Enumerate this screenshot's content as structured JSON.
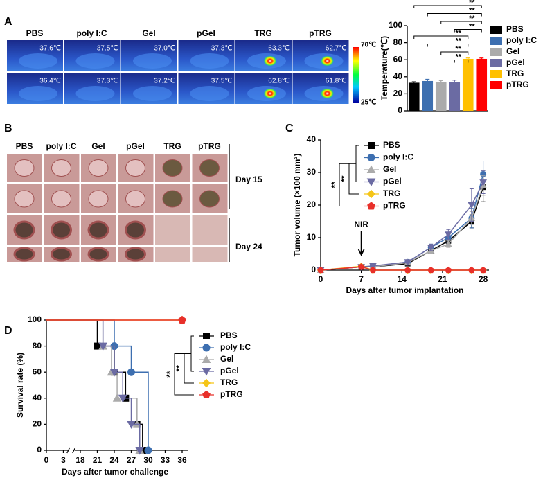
{
  "panel_labels": [
    "A",
    "B",
    "C",
    "D"
  ],
  "thermal": {
    "labels": [
      "PBS",
      "poly I:C",
      "Gel",
      "pGel",
      "TRG",
      "pTRG"
    ],
    "rows": [
      [
        "37.6℃",
        "37.5℃",
        "37.0℃",
        "37.3℃",
        "63.3℃",
        "62.7℃"
      ],
      [
        "36.4℃",
        "37.3℃",
        "37.2℃",
        "37.5℃",
        "62.8℃",
        "61.8℃"
      ]
    ],
    "scale": [
      "70℃",
      "25℃"
    ]
  },
  "photos": {
    "labels": [
      "PBS",
      "poly I:C",
      "Gel",
      "pGel",
      "TRG",
      "pTRG"
    ],
    "days": [
      "Day 15",
      "Day 24"
    ]
  },
  "chart_data": [
    {
      "type": "bar",
      "ylabel": "Temperature(℃)",
      "categories": [
        "PBS",
        "poly I:C",
        "Gel",
        "pGel",
        "TRG",
        "pTRG"
      ],
      "values": [
        33,
        35,
        34,
        34,
        61,
        61
      ],
      "errors": [
        1,
        2,
        1.5,
        2,
        1,
        1
      ],
      "colors": [
        "#000000",
        "#3d6fb0",
        "#ababab",
        "#6b6ba3",
        "#ffc000",
        "#ff0000"
      ],
      "ylim": [
        0,
        100
      ],
      "yticks": [
        0,
        20,
        40,
        60,
        80,
        100
      ],
      "legend": "right",
      "significance": [
        "**",
        "**",
        "**",
        "**",
        "**",
        "**",
        "**",
        "**"
      ]
    },
    {
      "type": "line",
      "xlabel": "Days after tumor implantation",
      "ylabel": "Tumor volume (×100 mm³)",
      "x": [
        0,
        7,
        9,
        15,
        19,
        22,
        26,
        28
      ],
      "xlim": [
        0,
        29
      ],
      "xticks": [
        0,
        7,
        14,
        21,
        28
      ],
      "ylim": [
        0,
        40
      ],
      "yticks": [
        0,
        10,
        20,
        30,
        40
      ],
      "annotation": "NIR",
      "significance": [
        "**",
        "**"
      ],
      "series": [
        {
          "name": "PBS",
          "color": "#000000",
          "marker": "square",
          "values": [
            0,
            1,
            1,
            2,
            6,
            9,
            15,
            25.5
          ],
          "errors": [
            0,
            0,
            0.3,
            0.3,
            0.8,
            1,
            2,
            4.5
          ]
        },
        {
          "name": "poly I:C",
          "color": "#3d6fb0",
          "marker": "circle",
          "values": [
            0,
            1,
            1.2,
            2.5,
            7,
            10,
            16,
            29.5
          ],
          "errors": [
            0,
            0,
            0.3,
            0.4,
            1,
            1.5,
            3,
            4
          ]
        },
        {
          "name": "Gel",
          "color": "#ababab",
          "marker": "triangle-up",
          "values": [
            0,
            1,
            1,
            2.3,
            6,
            8,
            16,
            26
          ],
          "errors": [
            0,
            0,
            0.2,
            0.3,
            0.8,
            1,
            2,
            3
          ]
        },
        {
          "name": "pGel",
          "color": "#6b6ba3",
          "marker": "triangle-down",
          "values": [
            0,
            1,
            1.3,
            2.5,
            7,
            11,
            20,
            27
          ],
          "errors": [
            0,
            0,
            0.3,
            0.4,
            1,
            1.5,
            5,
            3.5
          ]
        },
        {
          "name": "TRG",
          "color": "#f5c518",
          "marker": "diamond",
          "values": [
            0,
            1.2,
            0,
            0,
            0,
            0,
            0,
            0
          ],
          "errors": [
            0,
            0,
            0,
            0,
            0,
            0,
            0,
            0
          ]
        },
        {
          "name": "pTRG",
          "color": "#e8302a",
          "marker": "pentagon",
          "values": [
            0,
            1,
            0,
            0,
            0,
            0,
            0,
            0
          ],
          "errors": [
            0,
            0,
            0,
            0,
            0,
            0,
            0,
            0
          ]
        }
      ]
    },
    {
      "type": "step",
      "xlabel": "Days after tumor challenge",
      "ylabel": "Survival rate (%)",
      "xlim": [
        0,
        37
      ],
      "xticks": [
        0,
        3,
        18,
        21,
        24,
        27,
        30,
        33,
        36
      ],
      "ylim": [
        0,
        100
      ],
      "yticks": [
        0,
        20,
        40,
        60,
        80,
        100
      ],
      "significance": [
        "**",
        "**"
      ],
      "series": [
        {
          "name": "PBS",
          "color": "#000000",
          "marker": "square",
          "x": [
            0,
            21,
            24,
            26,
            28,
            29
          ],
          "values": [
            100,
            80,
            60,
            40,
            20,
            0
          ]
        },
        {
          "name": "poly I:C",
          "color": "#3d6fb0",
          "marker": "circle",
          "x": [
            0,
            24,
            27,
            30
          ],
          "values": [
            100,
            80,
            60,
            0
          ]
        },
        {
          "name": "Gel",
          "color": "#ababab",
          "marker": "triangle-up",
          "x": [
            0,
            22,
            23.5,
            24.5,
            28,
            28.5
          ],
          "values": [
            100,
            80,
            60,
            40,
            20,
            0
          ]
        },
        {
          "name": "pGel",
          "color": "#6b6ba3",
          "marker": "triangle-down",
          "x": [
            0,
            22,
            24,
            25.5,
            27,
            28.5
          ],
          "values": [
            100,
            80,
            60,
            40,
            20,
            0
          ]
        },
        {
          "name": "TRG",
          "color": "#f5c518",
          "marker": "diamond",
          "x": [
            0,
            36
          ],
          "values": [
            100,
            100
          ]
        },
        {
          "name": "pTRG",
          "color": "#e8302a",
          "marker": "pentagon",
          "x": [
            0,
            36
          ],
          "values": [
            100,
            100
          ]
        }
      ]
    }
  ]
}
